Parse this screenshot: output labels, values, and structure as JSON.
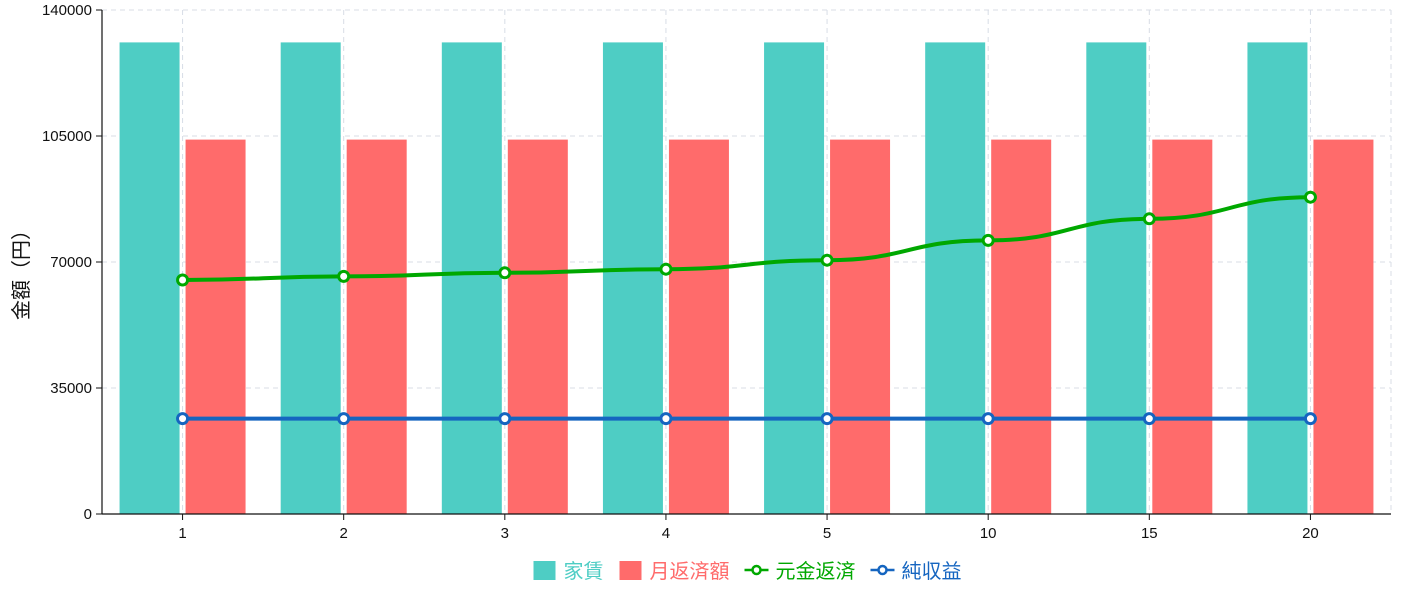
{
  "chart_data": {
    "type": "bar",
    "categories": [
      "1",
      "2",
      "3",
      "4",
      "5",
      "10",
      "15",
      "20"
    ],
    "ylabel": "金額（円）",
    "xlabel": "",
    "ylim": [
      0,
      140000
    ],
    "yticks": [
      "0",
      "35000",
      "70000",
      "105000",
      "140000"
    ],
    "grid": true,
    "legend_position": "bottom",
    "series": [
      {
        "name": "家賃",
        "kind": "bar",
        "color": "#4ecdc4",
        "values": [
          131000,
          131000,
          131000,
          131000,
          131000,
          131000,
          131000,
          131000
        ]
      },
      {
        "name": "月返済額",
        "kind": "bar",
        "color": "#ff6b6b",
        "values": [
          104000,
          104000,
          104000,
          104000,
          104000,
          104000,
          104000,
          104000
        ]
      },
      {
        "name": "元金返済",
        "kind": "line",
        "color": "#00a800",
        "values": [
          65000,
          66000,
          67000,
          68000,
          70500,
          76000,
          82000,
          88000
        ]
      },
      {
        "name": "純収益",
        "kind": "line",
        "color": "#1565c0",
        "values": [
          26500,
          26500,
          26500,
          26500,
          26500,
          26500,
          26500,
          26500
        ]
      }
    ]
  }
}
